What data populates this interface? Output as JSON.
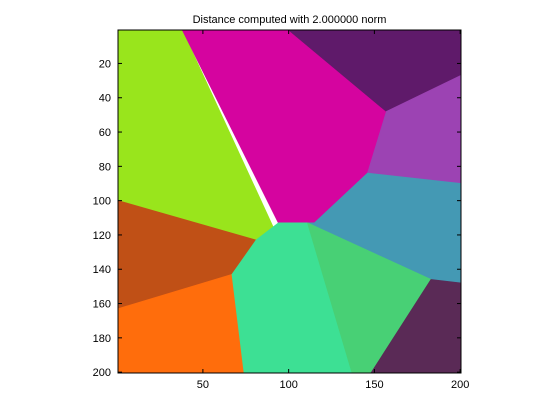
{
  "chart_data": {
    "type": "heatmap",
    "title": "Distance computed with 2.000000 norm",
    "xlabel": "",
    "ylabel": "",
    "xlim": [
      0.5,
      200.5
    ],
    "ylim": [
      0.5,
      200.5
    ],
    "y_reversed": true,
    "grid": false,
    "x_ticks": [
      50,
      100,
      150,
      200
    ],
    "y_ticks": [
      20,
      40,
      60,
      80,
      100,
      120,
      140,
      160,
      180,
      200
    ],
    "regions": [
      {
        "color": "#99e51c",
        "polygon": [
          [
            0.5,
            0.5
          ],
          [
            38,
            0.5
          ],
          [
            94,
            122
          ],
          [
            81,
            123
          ],
          [
            0.5,
            100
          ]
        ]
      },
      {
        "color": "#d5049f",
        "polygon": [
          [
            38,
            0.5
          ],
          [
            100,
            0.5
          ],
          [
            157,
            48
          ],
          [
            146,
            84
          ],
          [
            115,
            113
          ],
          [
            94,
            113
          ]
        ]
      },
      {
        "color": "#5f1a6a",
        "polygon": [
          [
            100,
            0.5
          ],
          [
            200.5,
            0.5
          ],
          [
            200.5,
            27
          ],
          [
            157,
            48
          ]
        ]
      },
      {
        "color": "#9c43b3",
        "polygon": [
          [
            157,
            48
          ],
          [
            200.5,
            27
          ],
          [
            200.5,
            90
          ],
          [
            146,
            84
          ]
        ]
      },
      {
        "color": "#4499b4",
        "polygon": [
          [
            146,
            84
          ],
          [
            200.5,
            90
          ],
          [
            200.5,
            148
          ],
          [
            183,
            146
          ],
          [
            111,
            113
          ],
          [
            115,
            113
          ]
        ]
      },
      {
        "color": "#c05016",
        "polygon": [
          [
            0.5,
            100
          ],
          [
            81,
            123
          ],
          [
            67,
            143
          ],
          [
            0.5,
            163
          ]
        ]
      },
      {
        "color": "#ff6d0c",
        "polygon": [
          [
            0.5,
            163
          ],
          [
            67,
            143
          ],
          [
            74,
            200.5
          ],
          [
            0.5,
            200.5
          ]
        ]
      },
      {
        "color": "#3de094",
        "polygon": [
          [
            81,
            123
          ],
          [
            94,
            113
          ],
          [
            111,
            113
          ],
          [
            137,
            200.5
          ],
          [
            74,
            200.5
          ],
          [
            67,
            143
          ]
        ]
      },
      {
        "color": "#48d075",
        "polygon": [
          [
            111,
            113
          ],
          [
            183,
            146
          ],
          [
            148,
            200.5
          ],
          [
            137,
            200.5
          ]
        ]
      },
      {
        "color": "#5a2a56",
        "polygon": [
          [
            183,
            146
          ],
          [
            200.5,
            148
          ],
          [
            200.5,
            200.5
          ],
          [
            148,
            200.5
          ]
        ]
      }
    ]
  }
}
